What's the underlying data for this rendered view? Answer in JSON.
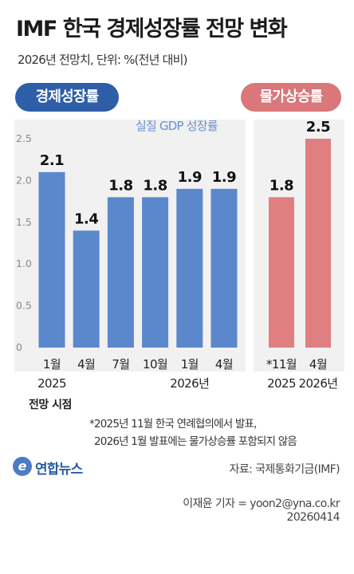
{
  "title": "IMF 한국 경제성장률 전망 변화",
  "subtitle": "2026년 전망치, 단위: %(전년 대비)",
  "pills": {
    "growth": "경제성장률",
    "inflation": "물가상승률"
  },
  "chart_data": [
    {
      "type": "bar",
      "title": "",
      "series": [
        {
          "name": "실질 GDP 성장률",
          "color": "#5b88cc",
          "values": [
            2.1,
            1.4,
            1.8,
            1.8,
            1.9,
            1.9
          ]
        }
      ],
      "categories": [
        "1월",
        "4월",
        "7월",
        "10월",
        "1월",
        "4월"
      ],
      "year_labels": [
        {
          "label": "2025",
          "category_index": 0
        },
        {
          "label": "2026년",
          "category_index": 4
        }
      ],
      "data_labels": [
        "2.1",
        "1.4",
        "1.8",
        "1.8",
        "1.9",
        "1.9"
      ],
      "xlabel": "전망 시점",
      "ylabel": "",
      "ylim": [
        0,
        2.5
      ],
      "yticks": [
        0,
        0.5,
        1.0,
        1.5,
        2.0,
        2.5
      ],
      "ytick_labels": [
        "0",
        "0.5",
        "1.0",
        "1.5",
        "2.0",
        "2.5"
      ],
      "grid": false
    },
    {
      "type": "bar",
      "title": "",
      "series": [
        {
          "name": "물가상승률",
          "color": "#e07f80",
          "values": [
            1.8,
            2.5
          ]
        }
      ],
      "categories": [
        "*11월",
        "4월"
      ],
      "year_labels": [
        {
          "label": "2025",
          "category_index": 0
        },
        {
          "label": "2026년",
          "category_index": 1
        }
      ],
      "data_labels": [
        "1.8",
        "2.5"
      ],
      "ylim": [
        0,
        2.5
      ],
      "grid": false
    }
  ],
  "footnotes": [
    "*2025년 11월 한국 연례협의에서 발표,",
    "2026년 1월 발표에는 물가상승률 포함되지 않음"
  ],
  "logo": {
    "mark": "e",
    "text": "연합뉴스"
  },
  "source": "자료: 국제통화기금(IMF)",
  "reporter": "이재윤 기자 = yoon2@yna.co.kr",
  "date": "20260414"
}
